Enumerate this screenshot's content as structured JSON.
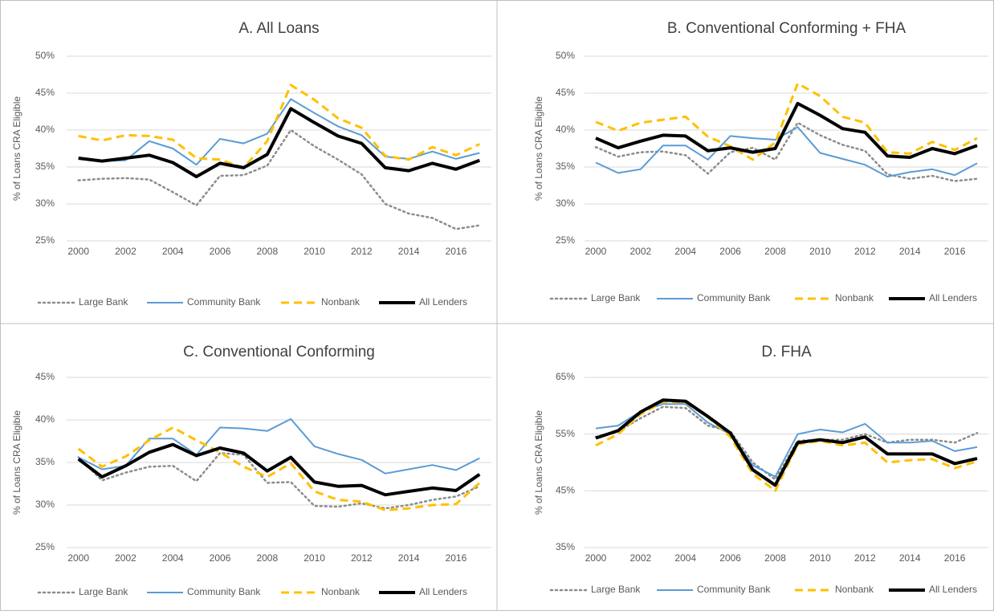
{
  "chart_data": [
    {
      "type": "line",
      "title": "A. All Loans",
      "y_label": "% of Loans CRA Eligible",
      "x": [
        2000,
        2001,
        2002,
        2003,
        2004,
        2005,
        2006,
        2007,
        2008,
        2009,
        2010,
        2011,
        2012,
        2013,
        2014,
        2015,
        2016,
        2017
      ],
      "xlim": [
        1999.5,
        2017.5
      ],
      "xticks": [
        2000,
        2002,
        2004,
        2006,
        2008,
        2010,
        2012,
        2014,
        2016
      ],
      "ylim": [
        25,
        50
      ],
      "yticks": [
        {
          "value": 25,
          "label": "25%"
        },
        {
          "value": 30,
          "label": "30%"
        },
        {
          "value": 35,
          "label": "35%"
        },
        {
          "value": 40,
          "label": "40%"
        },
        {
          "value": 45,
          "label": "45%"
        },
        {
          "value": 50,
          "label": "50%"
        }
      ],
      "grid": true,
      "legend": "bottom",
      "series": [
        {
          "name": "Large Bank",
          "color": "#8c8c8c",
          "dash": "dotted",
          "width": 2.5,
          "values": [
            33.2,
            33.4,
            33.5,
            33.3,
            31.6,
            29.8,
            33.8,
            33.9,
            35.2,
            40.0,
            37.8,
            36.0,
            34.0,
            30.0,
            28.7,
            28.1,
            26.6,
            27.1
          ]
        },
        {
          "name": "Community Bank",
          "color": "#5b9bd5",
          "dash": "solid",
          "width": 2,
          "values": [
            36.2,
            35.8,
            35.9,
            38.5,
            37.5,
            35.3,
            38.8,
            38.2,
            39.5,
            44.2,
            42.3,
            40.5,
            39.3,
            36.4,
            36.1,
            37.1,
            36.1,
            36.9
          ]
        },
        {
          "name": "Nonbank",
          "color": "#ffc000",
          "dash": "dashed",
          "width": 3,
          "values": [
            39.2,
            38.6,
            39.3,
            39.2,
            38.7,
            36.2,
            36.0,
            34.9,
            38.5,
            46.1,
            44.1,
            41.6,
            40.3,
            36.5,
            36.0,
            37.7,
            36.6,
            38.1
          ]
        },
        {
          "name": "All Lenders",
          "color": "#000000",
          "dash": "solid",
          "width": 4,
          "values": [
            36.2,
            35.8,
            36.2,
            36.6,
            35.6,
            33.7,
            35.5,
            34.9,
            36.7,
            42.9,
            41.0,
            39.2,
            38.2,
            34.9,
            34.5,
            35.5,
            34.7,
            35.9
          ]
        }
      ]
    },
    {
      "type": "line",
      "title": "B. Conventional Conforming + FHA",
      "y_label": "% of Loans CRA Eligible",
      "x": [
        2000,
        2001,
        2002,
        2003,
        2004,
        2005,
        2006,
        2007,
        2008,
        2009,
        2010,
        2011,
        2012,
        2013,
        2014,
        2015,
        2016,
        2017
      ],
      "xlim": [
        1999.5,
        2017.5
      ],
      "xticks": [
        2000,
        2002,
        2004,
        2006,
        2008,
        2010,
        2012,
        2014,
        2016
      ],
      "ylim": [
        25,
        50
      ],
      "yticks": [
        {
          "value": 25,
          "label": "25%"
        },
        {
          "value": 30,
          "label": "30%"
        },
        {
          "value": 35,
          "label": "35%"
        },
        {
          "value": 40,
          "label": "40%"
        },
        {
          "value": 45,
          "label": "45%"
        },
        {
          "value": 50,
          "label": "50%"
        }
      ],
      "grid": true,
      "legend": "bottom",
      "series": [
        {
          "name": "Large Bank",
          "color": "#8c8c8c",
          "dash": "dotted",
          "width": 2.5,
          "values": [
            37.7,
            36.4,
            37.0,
            37.1,
            36.6,
            34.1,
            37.0,
            37.6,
            36.0,
            41.0,
            39.3,
            38.0,
            37.2,
            34.0,
            33.4,
            33.8,
            33.1,
            33.4
          ]
        },
        {
          "name": "Community Bank",
          "color": "#5b9bd5",
          "dash": "solid",
          "width": 2,
          "values": [
            35.6,
            34.2,
            34.7,
            37.9,
            37.9,
            36.0,
            39.2,
            38.9,
            38.7,
            40.4,
            36.9,
            36.1,
            35.3,
            33.7,
            34.3,
            34.7,
            33.9,
            35.5
          ]
        },
        {
          "name": "Nonbank",
          "color": "#ffc000",
          "dash": "dashed",
          "width": 3,
          "values": [
            41.1,
            39.9,
            41.0,
            41.4,
            41.8,
            39.1,
            37.8,
            36.0,
            38.3,
            46.3,
            44.6,
            41.8,
            41.0,
            37.0,
            36.8,
            38.4,
            37.3,
            38.9
          ]
        },
        {
          "name": "All Lenders",
          "color": "#000000",
          "dash": "solid",
          "width": 4,
          "values": [
            38.9,
            37.6,
            38.5,
            39.3,
            39.2,
            37.2,
            37.6,
            37.0,
            37.5,
            43.6,
            42.0,
            40.2,
            39.7,
            36.5,
            36.3,
            37.5,
            36.8,
            37.9
          ]
        }
      ]
    },
    {
      "type": "line",
      "title": "C. Conventional Conforming",
      "y_label": "% of Loans CRA Eligible",
      "x": [
        2000,
        2001,
        2002,
        2003,
        2004,
        2005,
        2006,
        2007,
        2008,
        2009,
        2010,
        2011,
        2012,
        2013,
        2014,
        2015,
        2016,
        2017
      ],
      "xlim": [
        1999.5,
        2017.5
      ],
      "xticks": [
        2000,
        2002,
        2004,
        2006,
        2008,
        2010,
        2012,
        2014,
        2016
      ],
      "ylim": [
        25,
        45
      ],
      "yticks": [
        {
          "value": 25,
          "label": "25%"
        },
        {
          "value": 30,
          "label": "30%"
        },
        {
          "value": 35,
          "label": "35%"
        },
        {
          "value": 40,
          "label": "40%"
        },
        {
          "value": 45,
          "label": "45%"
        }
      ],
      "grid": true,
      "legend": "bottom",
      "series": [
        {
          "name": "Large Bank",
          "color": "#8c8c8c",
          "dash": "dotted",
          "width": 2.5,
          "values": [
            35.6,
            32.9,
            33.8,
            34.5,
            34.6,
            32.8,
            36.1,
            35.9,
            32.6,
            32.7,
            29.9,
            29.8,
            30.2,
            29.6,
            30.0,
            30.6,
            31.0,
            32.2
          ]
        },
        {
          "name": "Community Bank",
          "color": "#5b9bd5",
          "dash": "solid",
          "width": 2,
          "values": [
            35.6,
            34.2,
            34.6,
            37.8,
            37.8,
            35.9,
            39.1,
            39.0,
            38.7,
            40.1,
            36.9,
            36.0,
            35.3,
            33.7,
            34.2,
            34.7,
            34.1,
            35.5
          ]
        },
        {
          "name": "Nonbank",
          "color": "#ffc000",
          "dash": "dashed",
          "width": 3,
          "values": [
            36.6,
            34.5,
            35.7,
            37.6,
            39.1,
            37.6,
            36.2,
            34.5,
            33.3,
            34.9,
            31.6,
            30.6,
            30.4,
            29.4,
            29.6,
            30.0,
            30.1,
            32.6
          ]
        },
        {
          "name": "All Lenders",
          "color": "#000000",
          "dash": "solid",
          "width": 4,
          "values": [
            35.4,
            33.3,
            34.6,
            36.2,
            37.1,
            35.8,
            36.7,
            36.1,
            34.0,
            35.6,
            32.7,
            32.2,
            32.3,
            31.2,
            31.6,
            32.0,
            31.7,
            33.6
          ]
        }
      ]
    },
    {
      "type": "line",
      "title": "D. FHA",
      "y_label": "% of Loans CRA Eligible",
      "x": [
        2000,
        2001,
        2002,
        2003,
        2004,
        2005,
        2006,
        2007,
        2008,
        2009,
        2010,
        2011,
        2012,
        2013,
        2014,
        2015,
        2016,
        2017
      ],
      "xlim": [
        1999.5,
        2017.5
      ],
      "xticks": [
        2000,
        2002,
        2004,
        2006,
        2008,
        2010,
        2012,
        2014,
        2016
      ],
      "ylim": [
        35,
        65
      ],
      "yticks": [
        {
          "value": 35,
          "label": "35%"
        },
        {
          "value": 45,
          "label": "45%"
        },
        {
          "value": 55,
          "label": "55%"
        },
        {
          "value": 65,
          "label": "65%"
        }
      ],
      "grid": true,
      "legend": "bottom",
      "series": [
        {
          "name": "Large Bank",
          "color": "#8c8c8c",
          "dash": "dotted",
          "width": 2.5,
          "values": [
            54.5,
            55.5,
            57.8,
            59.8,
            59.6,
            56.5,
            55.5,
            50.0,
            47.0,
            53.8,
            54.0,
            54.0,
            55.0,
            53.5,
            54.0,
            54.0,
            53.5,
            55.2
          ]
        },
        {
          "name": "Community Bank",
          "color": "#5b9bd5",
          "dash": "solid",
          "width": 2,
          "values": [
            56.0,
            56.5,
            59.0,
            60.3,
            60.3,
            57.0,
            55.0,
            49.5,
            47.5,
            55.0,
            55.8,
            55.3,
            56.8,
            53.5,
            53.5,
            53.8,
            52.0,
            52.7
          ]
        },
        {
          "name": "Nonbank",
          "color": "#ffc000",
          "dash": "dashed",
          "width": 3,
          "values": [
            53.0,
            55.0,
            58.5,
            60.7,
            60.6,
            58.0,
            54.5,
            48.0,
            45.0,
            53.2,
            53.8,
            53.0,
            53.5,
            50.0,
            50.4,
            50.6,
            49.0,
            50.2
          ]
        },
        {
          "name": "All Lenders",
          "color": "#000000",
          "dash": "solid",
          "width": 4,
          "values": [
            54.3,
            55.6,
            58.9,
            61.0,
            60.8,
            58.1,
            55.2,
            48.7,
            46.0,
            53.5,
            54.0,
            53.5,
            54.5,
            51.5,
            51.5,
            51.5,
            49.8,
            50.7
          ]
        }
      ]
    }
  ]
}
